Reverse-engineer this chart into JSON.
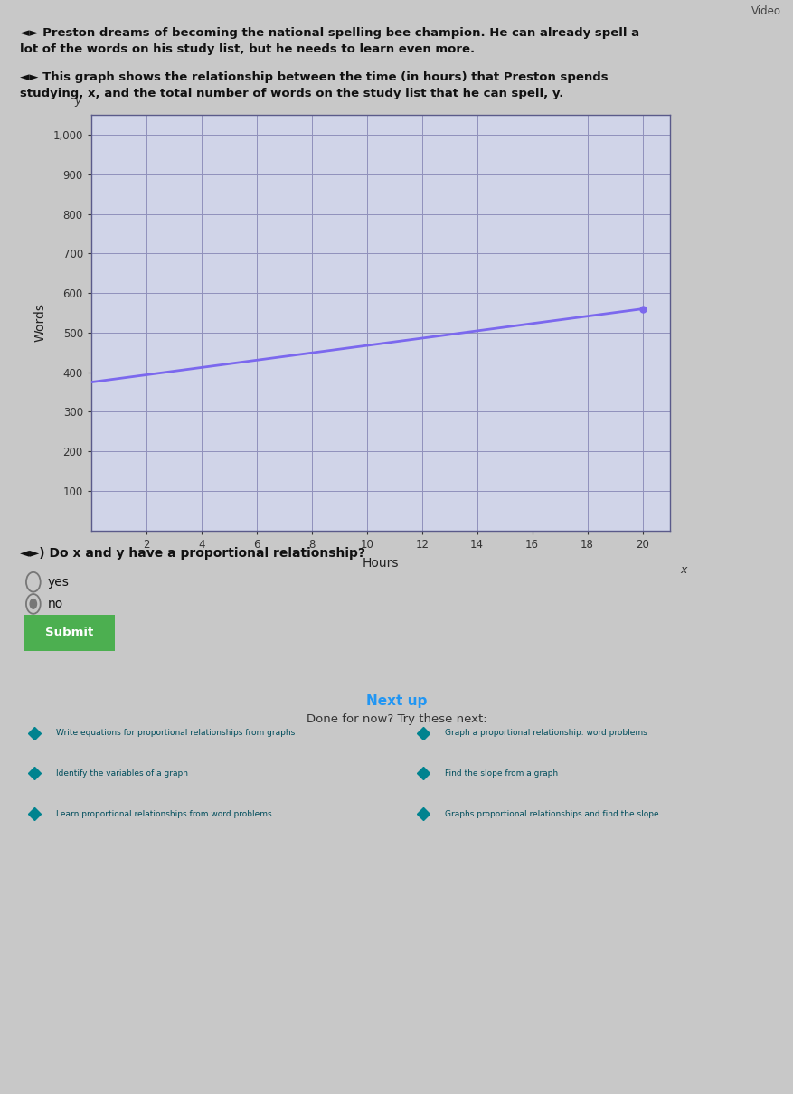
{
  "background_color": "#c8c8c8",
  "title1_line1": "◄► Preston dreams of becoming the national spelling bee champion. He can already spell a",
  "title1_line2": "lot of the words on his study list, but he needs to learn even more.",
  "title2_line1": "◄► This graph shows the relationship between the time (in hours) that Preston spends",
  "title2_line2": "studying, x, and the total number of words on the study list that he can spell, y.",
  "question": "◄►) Do x and y have a proportional relationship?",
  "option_yes": "yes",
  "option_no": "no",
  "submit_label": "Submit",
  "next_up_label": "Next up",
  "done_for_now": "Done for now? Try these next:",
  "xlabel": "Hours",
  "ylabel": "Words",
  "x_ticks": [
    2,
    4,
    6,
    8,
    10,
    12,
    14,
    16,
    18,
    20
  ],
  "y_ticks": [
    100,
    200,
    300,
    400,
    500,
    600,
    700,
    800,
    900,
    1000
  ],
  "xlim": [
    0,
    21
  ],
  "ylim": [
    0,
    1050
  ],
  "line_x": [
    0,
    20
  ],
  "line_y": [
    375,
    560
  ],
  "line_color": "#7B68EE",
  "grid_color": "#9090bb",
  "plot_bg": "#d0d4e8",
  "submit_bg": "#4caf50",
  "submit_fg": "#ffffff",
  "video_label": "Video",
  "next_up_color": "#2196F3",
  "card_bg": "#b2ebf2",
  "card_icon_color": "#00838f",
  "card_text_color": "#004d5c",
  "dot_color": "#7B68EE",
  "card_labels_left": [
    "Write equations for proportional relationships from graphs",
    "Identify the variables of a graph",
    "Learn proportional relationships from word problems"
  ],
  "card_labels_right": [
    "Graph a proportional relationship: word problems",
    "Find the slope from a graph",
    "Graphs proportional relationships and find the slope"
  ]
}
